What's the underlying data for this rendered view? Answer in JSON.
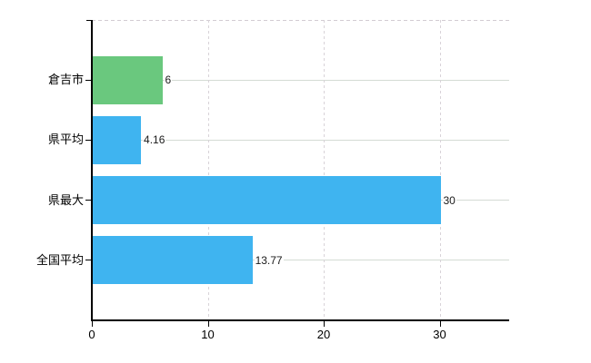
{
  "chart_data": {
    "type": "bar",
    "orientation": "horizontal",
    "title": "",
    "xlabel": "",
    "ylabel": "",
    "categories": [
      "倉吉市",
      "県平均",
      "県最大",
      "全国平均"
    ],
    "values": [
      6,
      4.16,
      30,
      13.77
    ],
    "value_labels": [
      "6",
      "4.16",
      "30",
      "13.77"
    ],
    "bar_colors": [
      "#6ac87e",
      "#3fb4f0",
      "#3fb4f0",
      "#3fb4f0"
    ],
    "xticks": [
      0,
      10,
      20,
      30
    ],
    "xtick_labels": [
      "0",
      "10",
      "20",
      "30"
    ],
    "xlim": [
      0,
      36
    ],
    "grid": {
      "vertical_dashed_at": [
        10,
        20,
        30
      ],
      "horizontal_at_category_centers": true,
      "top_border_dashed": true
    },
    "legend": "none"
  },
  "colors": {
    "highlight_bar": "#6ac87e",
    "default_bar": "#3fb4f0",
    "h_gridline": "#d4dbd4",
    "v_gridline": "#d8d3d8",
    "axis": "#000000",
    "background": "#ffffff",
    "text": "#000000"
  }
}
